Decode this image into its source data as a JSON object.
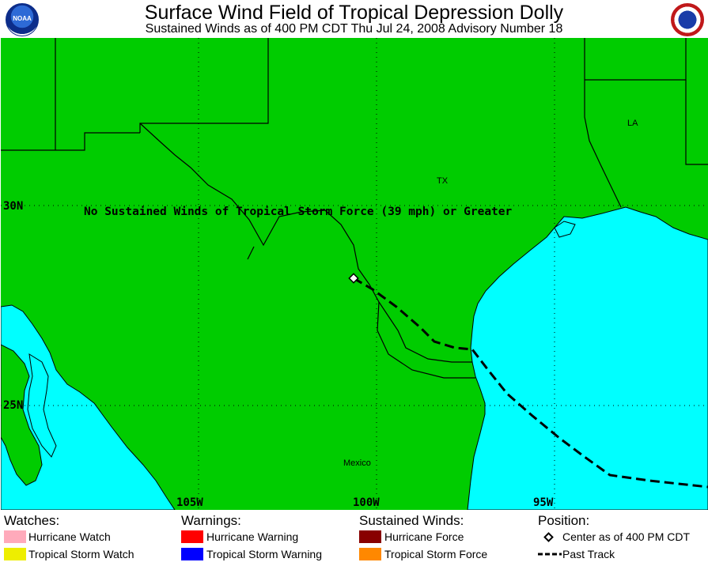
{
  "header": {
    "title": "Surface Wind Field of Tropical Depression Dolly",
    "subtitle": "Sustained Winds as of 400 PM CDT Thu Jul 24, 2008   Advisory Number 18"
  },
  "map": {
    "colors": {
      "land": "#00cc00",
      "water": "#00ffff",
      "borders": "#000000"
    },
    "latitude_labels": [
      "30N",
      "25N"
    ],
    "longitude_labels": [
      "105W",
      "100W",
      "95W"
    ],
    "region_labels": {
      "la": "LA",
      "tx": "TX",
      "mexico": "Mexico"
    },
    "message": "No Sustained Winds of Tropical Storm Force (39 mph) or Greater",
    "storm_center_icon": "diamond-icon",
    "past_track_style": "dashed"
  },
  "legend": {
    "watches": {
      "heading": "Watches:",
      "items": [
        {
          "label": "Hurricane Watch",
          "color": "#ffaabb"
        },
        {
          "label": "Tropical Storm Watch",
          "color": "#eeee00"
        }
      ]
    },
    "warnings": {
      "heading": "Warnings:",
      "items": [
        {
          "label": "Hurricane Warning",
          "color": "#ff0000"
        },
        {
          "label": "Tropical Storm Warning",
          "color": "#0000ff"
        }
      ]
    },
    "winds": {
      "heading": "Sustained Winds:",
      "items": [
        {
          "label": "Hurricane Force",
          "color": "#880000"
        },
        {
          "label": "Tropical Storm Force",
          "color": "#ff8800"
        }
      ]
    },
    "position": {
      "heading": "Position:",
      "center_label": "Center as of 400 PM CDT",
      "track_label": "Past Track"
    }
  }
}
